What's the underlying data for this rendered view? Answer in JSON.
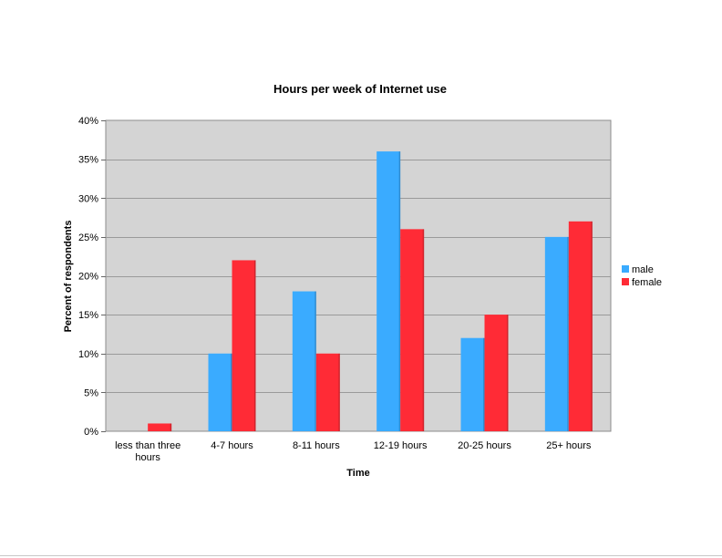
{
  "chart_data": {
    "type": "bar",
    "title": "Hours per week of Internet use",
    "xlabel": "Time",
    "ylabel": "Percent of respondents",
    "categories": [
      "less than three hours",
      "4-7 hours",
      "8-11 hours",
      "12-19 hours",
      "20-25 hours",
      "25+ hours"
    ],
    "category_lines": [
      [
        "less than three",
        "hours"
      ],
      [
        "4-7 hours"
      ],
      [
        "8-11 hours"
      ],
      [
        "12-19 hours"
      ],
      [
        "20-25 hours"
      ],
      [
        "25+ hours"
      ]
    ],
    "series": [
      {
        "name": "male",
        "color": "#3aabff",
        "values": [
          0,
          10,
          18,
          36,
          12,
          25
        ]
      },
      {
        "name": "female",
        "color": "#ff2b36",
        "values": [
          1,
          22,
          10,
          26,
          15,
          27
        ]
      }
    ],
    "ylim": [
      0,
      40
    ],
    "yticks": [
      0,
      5,
      10,
      15,
      20,
      25,
      30,
      35,
      40
    ],
    "ytick_labels": [
      "0%",
      "5%",
      "10%",
      "15%",
      "20%",
      "25%",
      "30%",
      "35%",
      "40%"
    ],
    "grid": true,
    "plot_background": "#d4d4d4",
    "legend_position": "right"
  }
}
